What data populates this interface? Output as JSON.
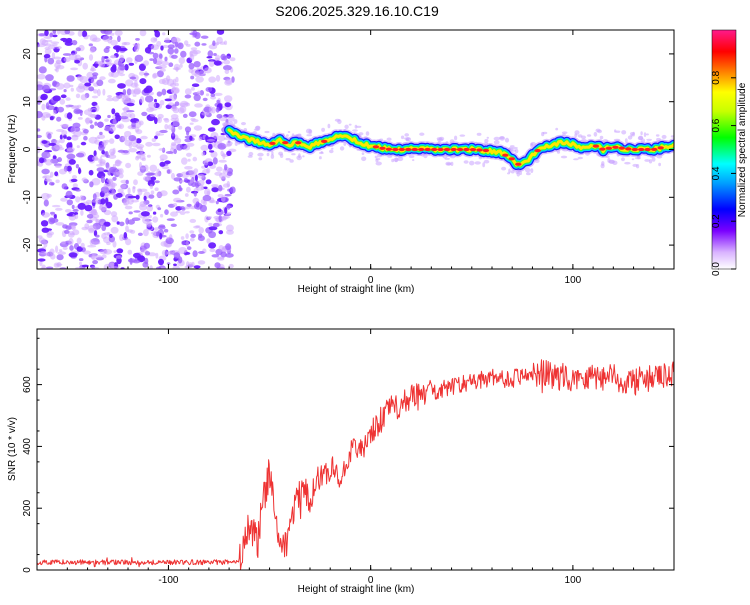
{
  "title": "S206.2025.329.16.10.C19",
  "colors": {
    "snr_line": "#ee3333",
    "scatter": "#7a2cff",
    "axis": "#000000"
  },
  "chart_data": [
    {
      "type": "heatmap",
      "title": "S206.2025.329.16.10.C19",
      "xlabel": "Height of straight line (km)",
      "ylabel": "Frequency (Hz)",
      "xlim": [
        -165,
        150
      ],
      "ylim": [
        -25,
        25
      ],
      "x_ticks": [
        -100,
        0,
        100
      ],
      "y_ticks": [
        -20,
        -10,
        0,
        10,
        20
      ],
      "noise_region_x": [
        -165,
        -68
      ],
      "trace": {
        "x": [
          -70,
          -65,
          -60,
          -55,
          -50,
          -45,
          -40,
          -35,
          -30,
          -25,
          -20,
          -15,
          -10,
          -5,
          0,
          5,
          10,
          20,
          30,
          40,
          50,
          60,
          65,
          70,
          72,
          75,
          78,
          80,
          85,
          90,
          95,
          100,
          105,
          110,
          115,
          120,
          130,
          140,
          150
        ],
        "y": [
          4,
          3,
          2,
          1.5,
          1,
          2,
          1,
          1.5,
          0.5,
          1.5,
          2,
          3,
          2.5,
          1,
          0.8,
          0.3,
          0,
          0,
          0,
          0,
          0,
          -0.3,
          -0.8,
          -2,
          -3,
          -3.2,
          -2,
          -1,
          0.5,
          1,
          1.5,
          1,
          0.3,
          1,
          0,
          0.5,
          0,
          0,
          1
        ]
      },
      "colorbar": {
        "label": "Normalized spectral amplitude",
        "ticks": [
          "0.0",
          "0.2",
          "0.4",
          "0.6",
          "0.8"
        ],
        "range": [
          0,
          1
        ]
      },
      "grid": false
    },
    {
      "type": "line",
      "xlabel": "Height of straight line (km)",
      "ylabel": "SNR (10 * v/v)",
      "xlim": [
        -165,
        150
      ],
      "ylim": [
        0,
        780
      ],
      "x_ticks": [
        -100,
        0,
        100
      ],
      "y_ticks": [
        0,
        200,
        400,
        600
      ],
      "series": [
        {
          "name": "SNR",
          "x": [
            -165,
            -150,
            -130,
            -110,
            -90,
            -70,
            -65,
            -62,
            -60,
            -58,
            -56,
            -54,
            -52,
            -50,
            -48,
            -46,
            -44,
            -42,
            -40,
            -38,
            -36,
            -34,
            -32,
            -30,
            -27,
            -24,
            -21,
            -18,
            -15,
            -12,
            -9,
            -6,
            -3,
            0,
            3,
            6,
            10,
            15,
            20,
            25,
            30,
            40,
            50,
            60,
            70,
            80,
            90,
            100,
            110,
            120,
            130,
            140,
            150
          ],
          "y": [
            25,
            25,
            25,
            25,
            25,
            25,
            30,
            90,
            150,
            120,
            80,
            200,
            260,
            320,
            240,
            120,
            60,
            90,
            140,
            200,
            240,
            260,
            250,
            230,
            280,
            310,
            330,
            320,
            300,
            360,
            390,
            380,
            400,
            430,
            470,
            490,
            520,
            540,
            560,
            560,
            580,
            590,
            610,
            620,
            620,
            640,
            630,
            620,
            630,
            620,
            610,
            620,
            630
          ]
        }
      ],
      "grid": false
    }
  ]
}
